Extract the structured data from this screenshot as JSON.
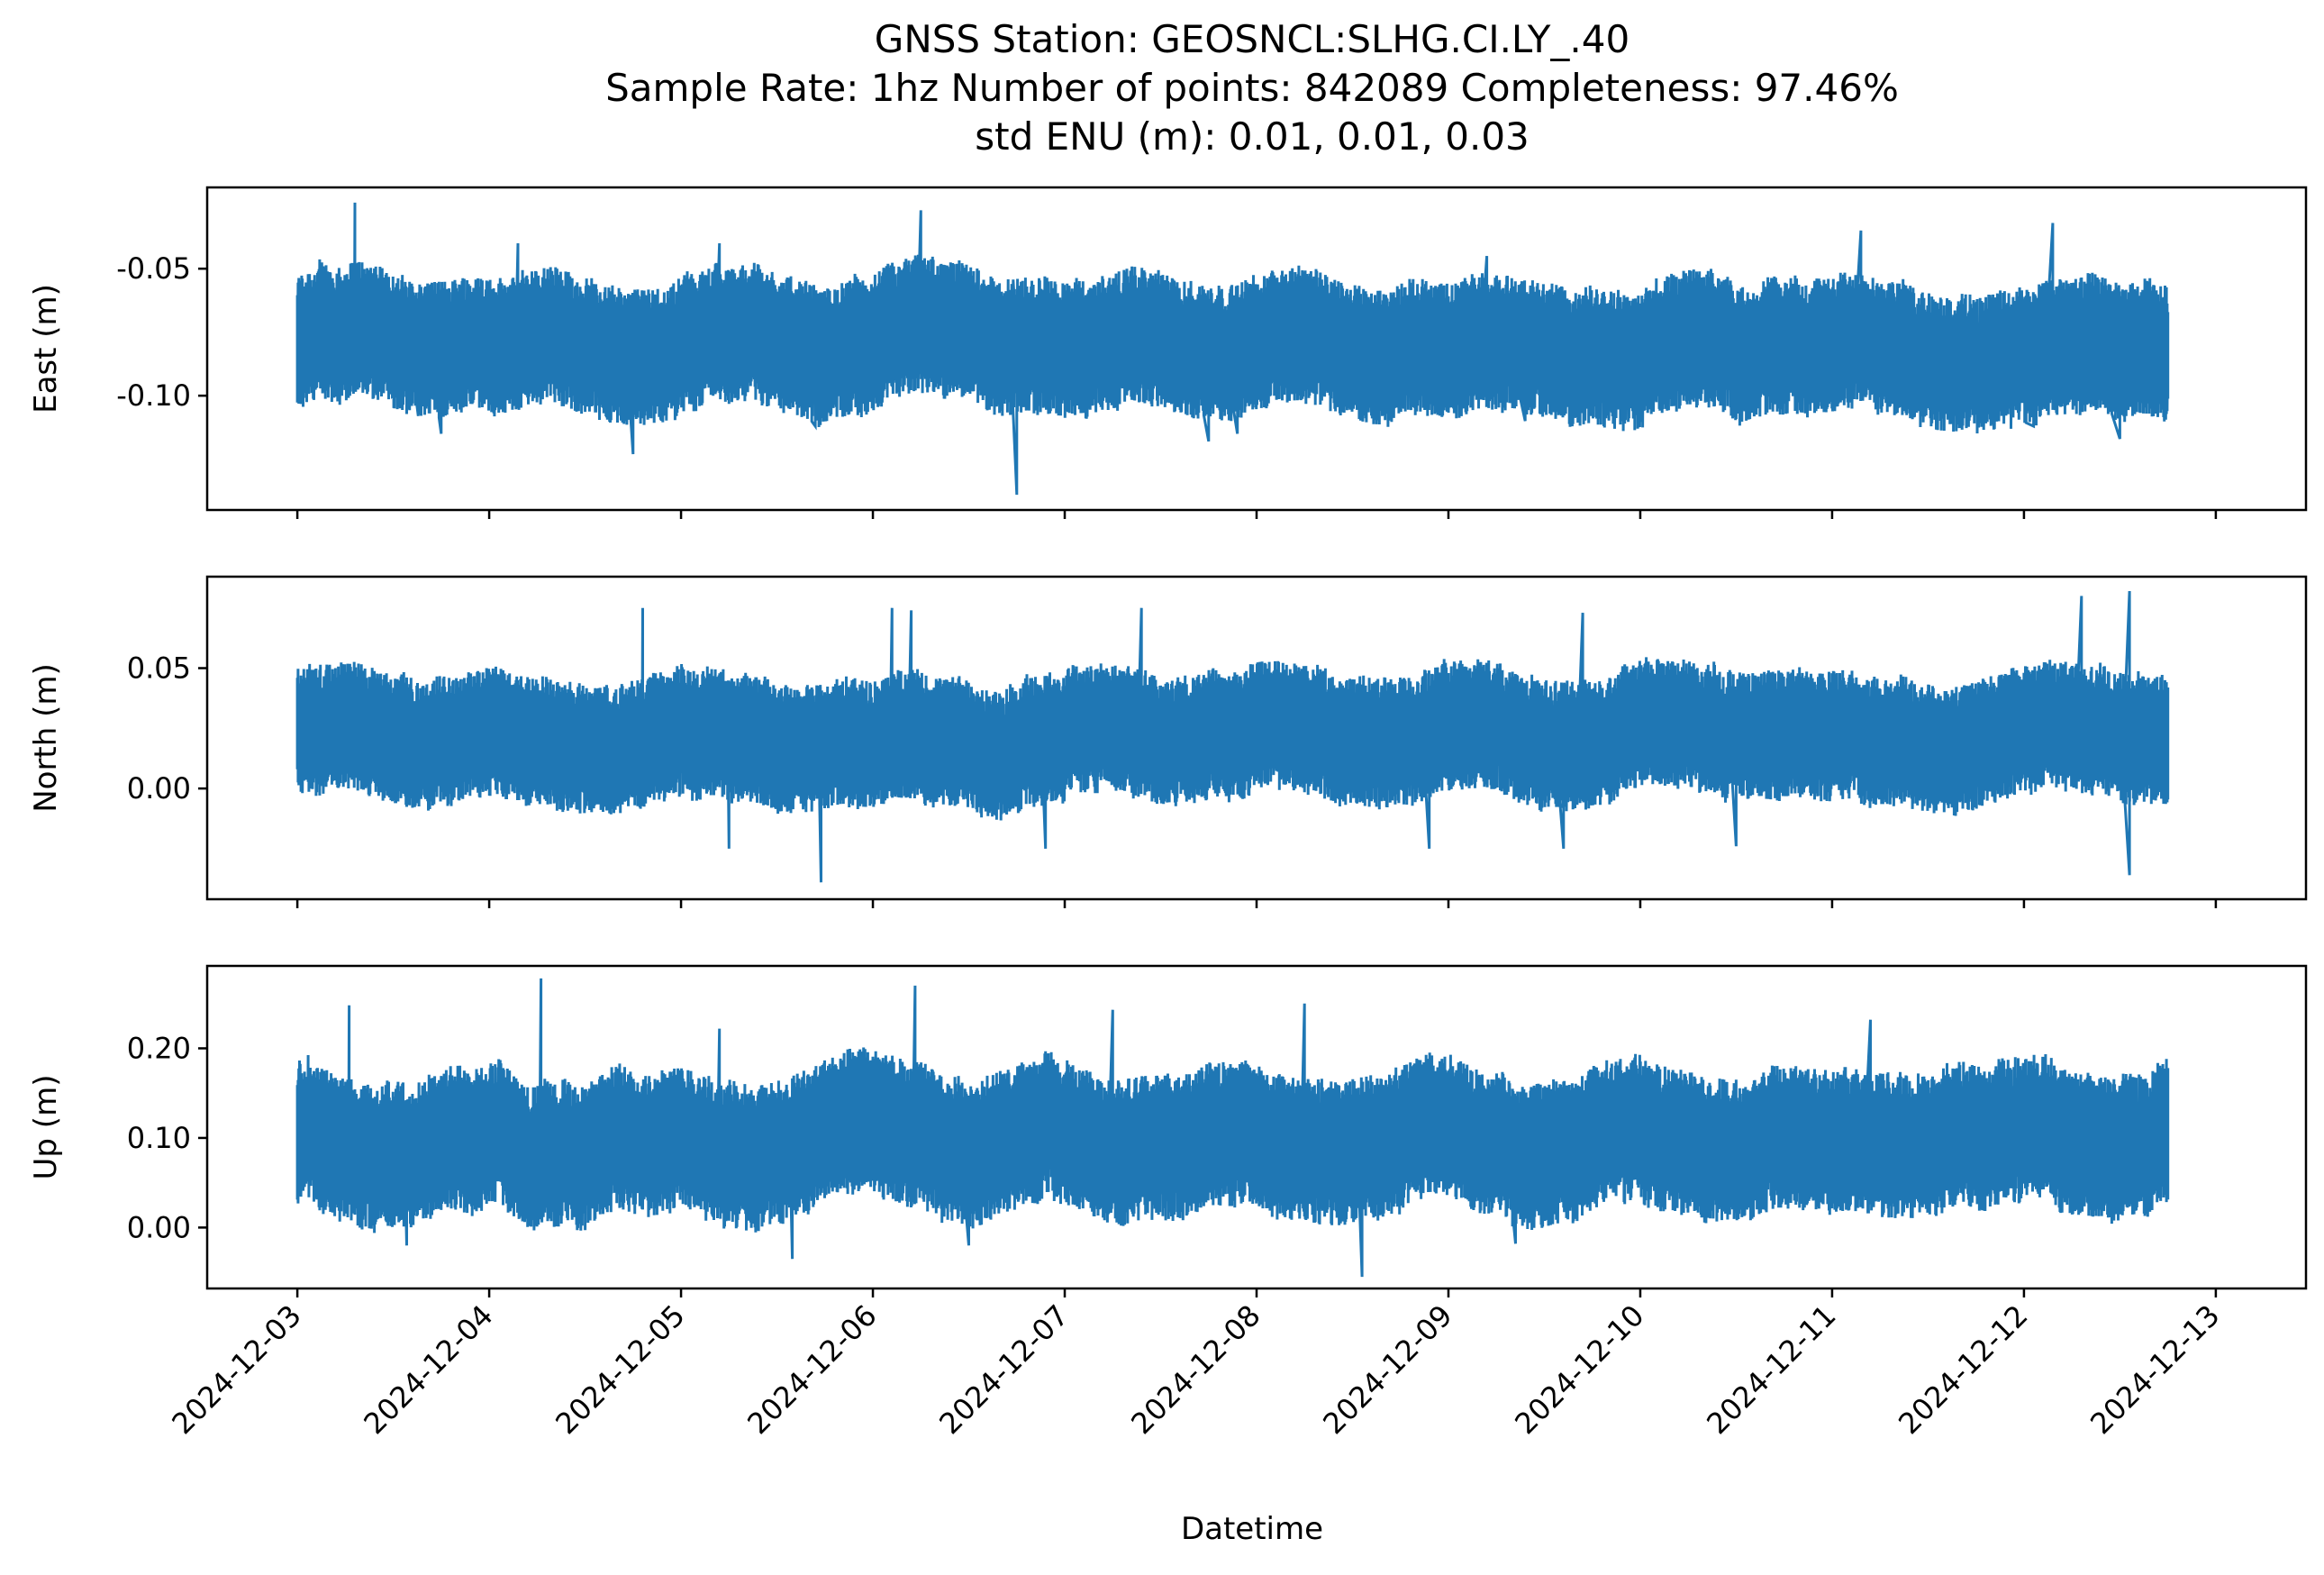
{
  "chart_data": {
    "type": "line",
    "title_lines": [
      "GNSS Station: GEOSNCL:SLHG.CI.LY_.40",
      "Sample Rate: 1hz   Number of points: 842089    Completeness:  97.46%",
      "std ENU (m):  0.01, 0.01, 0.03"
    ],
    "xlabel": "Datetime",
    "x_ticks": [
      "2024-12-03",
      "2024-12-04",
      "2024-12-05",
      "2024-12-06",
      "2024-12-07",
      "2024-12-08",
      "2024-12-09",
      "2024-12-10",
      "2024-12-11",
      "2024-12-12",
      "2024-12-13"
    ],
    "x_range_days": [
      -0.47,
      10.47
    ],
    "data_range_days": [
      0.0,
      9.75
    ],
    "line_color": "#1f77b4",
    "panels": [
      {
        "name": "east",
        "ylabel": "East (m)",
        "ylim": [
          -0.145,
          -0.018
        ],
        "yticks": [
          -0.05,
          -0.1
        ],
        "ytick_labels": [
          "-0.05",
          "-0.10"
        ],
        "mean": -0.08,
        "noise_std": 0.01,
        "range": [
          -0.139,
          -0.024
        ],
        "spikes_low": [
          [
            0.5,
            -0.1
          ],
          [
            0.63,
            -0.108
          ],
          [
            0.75,
            -0.115
          ],
          [
            1.75,
            -0.123
          ],
          [
            2.7,
            -0.112
          ],
          [
            3.75,
            -0.139
          ],
          [
            4.75,
            -0.118
          ],
          [
            4.9,
            -0.115
          ],
          [
            6.4,
            -0.11
          ],
          [
            9.05,
            -0.112
          ],
          [
            9.5,
            -0.117
          ]
        ],
        "spikes_high": [
          [
            0.3,
            -0.024
          ],
          [
            3.25,
            -0.027
          ],
          [
            1.15,
            -0.04
          ],
          [
            2.2,
            -0.04
          ],
          [
            9.15,
            -0.032
          ],
          [
            8.15,
            -0.035
          ],
          [
            6.2,
            -0.045
          ]
        ]
      },
      {
        "name": "north",
        "ylabel": "North (m)",
        "ylim": [
          -0.046,
          0.088
        ],
        "yticks": [
          0.05,
          0.0
        ],
        "ytick_labels": [
          "0.05",
          "0.00"
        ],
        "mean": 0.022,
        "noise_std": 0.01,
        "range": [
          -0.039,
          0.082
        ],
        "spikes_low": [
          [
            2.25,
            -0.025
          ],
          [
            2.73,
            -0.039
          ],
          [
            3.9,
            -0.025
          ],
          [
            5.9,
            -0.025
          ],
          [
            6.6,
            -0.025
          ],
          [
            7.5,
            -0.024
          ],
          [
            9.55,
            -0.036
          ]
        ],
        "spikes_high": [
          [
            1.8,
            0.075
          ],
          [
            3.1,
            0.075
          ],
          [
            4.4,
            0.075
          ],
          [
            6.7,
            0.073
          ],
          [
            9.3,
            0.08
          ],
          [
            9.55,
            0.082
          ],
          [
            3.2,
            0.074
          ]
        ]
      },
      {
        "name": "up",
        "ylabel": "Up (m)",
        "ylim": [
          -0.068,
          0.292
        ],
        "yticks": [
          0.2,
          0.1,
          0.0
        ],
        "ytick_labels": [
          "0.20",
          "0.10",
          "0.00"
        ],
        "mean": 0.095,
        "noise_std": 0.03,
        "range": [
          -0.055,
          0.278
        ],
        "spikes_low": [
          [
            0.57,
            -0.02
          ],
          [
            2.58,
            -0.035
          ],
          [
            3.5,
            -0.02
          ],
          [
            5.55,
            -0.055
          ],
          [
            6.35,
            -0.018
          ]
        ],
        "spikes_high": [
          [
            0.27,
            0.248
          ],
          [
            1.27,
            0.278
          ],
          [
            3.22,
            0.27
          ],
          [
            5.25,
            0.25
          ],
          [
            2.2,
            0.222
          ],
          [
            4.25,
            0.243
          ],
          [
            8.2,
            0.232
          ]
        ]
      }
    ]
  }
}
